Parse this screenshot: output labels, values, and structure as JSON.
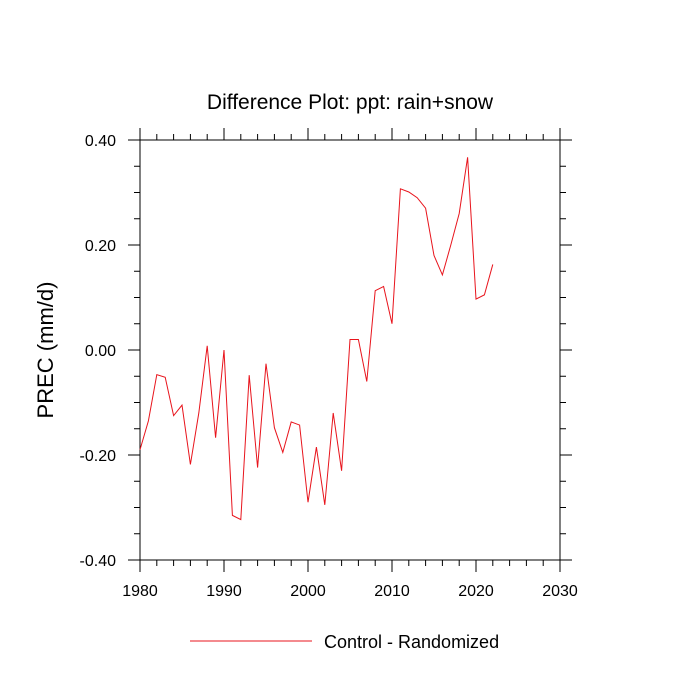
{
  "chart_data": {
    "type": "line",
    "title": "Difference Plot: ppt: rain+snow",
    "xlabel": "",
    "ylabel": "PREC  (mm/d)",
    "xlim": [
      1980,
      2030
    ],
    "ylim": [
      -0.4,
      0.4
    ],
    "xticks": [
      1980,
      1990,
      2000,
      2010,
      2020,
      2030
    ],
    "xtick_labels": [
      "1980",
      "1990",
      "2000",
      "2010",
      "2020",
      "2030"
    ],
    "yticks": [
      -0.4,
      -0.2,
      0.0,
      0.2,
      0.4
    ],
    "ytick_labels": [
      "-0.40",
      "-0.20",
      "0.00",
      "0.20",
      "0.40"
    ],
    "grid": false,
    "legend_position": "bottom-center",
    "series": [
      {
        "name": "Control - Randomized",
        "color": "#e8141c",
        "x": [
          1980,
          1981,
          1982,
          1983,
          1984,
          1985,
          1986,
          1987,
          1988,
          1989,
          1990,
          1991,
          1992,
          1993,
          1994,
          1995,
          1996,
          1997,
          1998,
          1999,
          2000,
          2001,
          2002,
          2003,
          2004,
          2005,
          2006,
          2007,
          2008,
          2009,
          2010,
          2011,
          2012,
          2013,
          2014,
          2015,
          2016,
          2017,
          2018,
          2019,
          2020,
          2021,
          2022
        ],
        "y": [
          -0.19,
          -0.135,
          -0.047,
          -0.052,
          -0.125,
          -0.105,
          -0.218,
          -0.12,
          0.008,
          -0.167,
          0.0,
          -0.315,
          -0.323,
          -0.048,
          -0.224,
          -0.026,
          -0.148,
          -0.195,
          -0.137,
          -0.143,
          -0.29,
          -0.185,
          -0.295,
          -0.12,
          -0.23,
          0.02,
          0.02,
          -0.06,
          0.113,
          0.121,
          0.05,
          0.307,
          0.301,
          0.29,
          0.27,
          0.18,
          0.143,
          0.2,
          0.26,
          0.367,
          0.097,
          0.105,
          0.163
        ]
      }
    ]
  }
}
